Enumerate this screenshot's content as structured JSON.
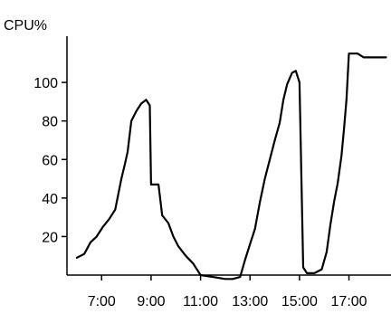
{
  "chart_data": {
    "type": "line",
    "ylabel": "CPU%",
    "xlabel": "",
    "title": "",
    "x_unit": "hour-of-day",
    "xlim": [
      5.6,
      18.7
    ],
    "ylim": [
      0,
      124
    ],
    "x_ticks": [
      7,
      9,
      11,
      13,
      15,
      17
    ],
    "x_tick_labels": [
      "7:00",
      "9:00",
      "11:00",
      "13:00",
      "15:00",
      "17:00"
    ],
    "y_ticks": [
      20,
      40,
      60,
      80,
      100
    ],
    "y_tick_labels": [
      "20",
      "40",
      "60",
      "80",
      "100"
    ],
    "grid": false,
    "legend": "none",
    "line_color": "#000000",
    "series": [
      {
        "name": "",
        "points": [
          [
            6.0,
            9
          ],
          [
            6.3,
            11
          ],
          [
            6.55,
            17
          ],
          [
            6.8,
            20
          ],
          [
            7.05,
            25
          ],
          [
            7.3,
            29
          ],
          [
            7.55,
            34
          ],
          [
            7.8,
            50
          ],
          [
            7.95,
            58
          ],
          [
            8.05,
            64
          ],
          [
            8.2,
            80
          ],
          [
            8.4,
            85
          ],
          [
            8.6,
            89
          ],
          [
            8.8,
            91
          ],
          [
            8.95,
            88
          ],
          [
            9.0,
            47
          ],
          [
            9.3,
            47
          ],
          [
            9.45,
            31
          ],
          [
            9.7,
            27
          ],
          [
            9.9,
            20
          ],
          [
            10.1,
            15
          ],
          [
            10.4,
            10
          ],
          [
            10.7,
            6
          ],
          [
            11.0,
            0
          ],
          [
            11.5,
            -1
          ],
          [
            12.0,
            -2
          ],
          [
            12.3,
            -2
          ],
          [
            12.6,
            -1
          ],
          [
            12.8,
            8
          ],
          [
            13.0,
            16
          ],
          [
            13.2,
            24
          ],
          [
            13.4,
            38
          ],
          [
            13.6,
            50
          ],
          [
            13.8,
            60
          ],
          [
            14.0,
            70
          ],
          [
            14.2,
            79
          ],
          [
            14.35,
            91
          ],
          [
            14.5,
            99
          ],
          [
            14.7,
            105
          ],
          [
            14.85,
            106
          ],
          [
            15.0,
            100
          ],
          [
            15.15,
            4
          ],
          [
            15.3,
            1
          ],
          [
            15.6,
            1
          ],
          [
            15.9,
            3
          ],
          [
            16.1,
            12
          ],
          [
            16.25,
            26
          ],
          [
            16.4,
            38
          ],
          [
            16.55,
            48
          ],
          [
            16.7,
            62
          ],
          [
            16.8,
            76
          ],
          [
            16.9,
            91
          ],
          [
            17.0,
            115
          ],
          [
            17.35,
            115
          ],
          [
            17.6,
            113
          ],
          [
            18.5,
            113
          ]
        ]
      }
    ]
  }
}
